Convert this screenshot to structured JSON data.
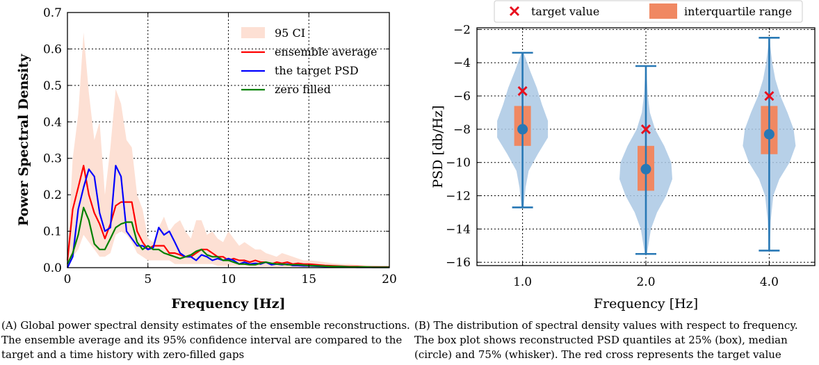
{
  "captions": {
    "a_tag": "(A)",
    "a_text": "Global power spectral density estimates of the ensemble reconstructions. The ensemble average and its 95% confidence interval are compared to the target and a time history with zero-filled gaps",
    "b_tag": "(B)",
    "b_text": "The distribution of spectral density values with respect to frequency. The box plot shows reconstructed PSD quantiles at 25% (box), median (circle) and 75% (whisker). The red cross represents the target value"
  },
  "chart_data": [
    {
      "type": "line",
      "title": "",
      "xlabel": "Frequency [Hz]",
      "ylabel": "Power Spectral Density",
      "xlim": [
        0,
        20
      ],
      "ylim": [
        0,
        0.7
      ],
      "xticks": [
        0,
        5,
        10,
        15,
        20
      ],
      "yticks": [
        0.0,
        0.1,
        0.2,
        0.3,
        0.4,
        0.5,
        0.6,
        0.7
      ],
      "grid": true,
      "legend": "top-right",
      "x": [
        0,
        0.33,
        0.67,
        1.0,
        1.33,
        1.67,
        2.0,
        2.33,
        2.67,
        3.0,
        3.33,
        3.67,
        4.0,
        4.33,
        4.67,
        5.0,
        5.33,
        5.67,
        6.0,
        6.33,
        6.67,
        7.0,
        7.33,
        7.67,
        8.0,
        8.33,
        8.67,
        9.0,
        9.33,
        9.67,
        10.0,
        10.33,
        10.67,
        11.0,
        11.33,
        11.67,
        12.0,
        12.33,
        12.67,
        13.0,
        13.33,
        13.67,
        14.0,
        14.33,
        14.67,
        15.0,
        15.5,
        16.0,
        16.5,
        17.0,
        17.5,
        18.0,
        18.5,
        19.0,
        19.5,
        20.0
      ],
      "band": {
        "name": "95 CI",
        "color": "#fde0d4",
        "lower": [
          0,
          0.03,
          0.05,
          0.09,
          0.07,
          0.05,
          0.03,
          0.03,
          0.04,
          0.09,
          0.1,
          0.09,
          0.07,
          0.04,
          0.03,
          0.02,
          0.02,
          0.02,
          0.02,
          0.02,
          0.01,
          0.01,
          0.01,
          0.01,
          0.01,
          0.01,
          0.01,
          0.01,
          0.005,
          0.005,
          0.005,
          0.005,
          0.005,
          0.005,
          0.003,
          0.003,
          0.003,
          0.003,
          0.002,
          0.002,
          0.002,
          0.002,
          0.002,
          0.001,
          0.001,
          0.001,
          0.001,
          0.001,
          0.001,
          0.001,
          0.001,
          0.001,
          0.001,
          0.001,
          0.001,
          0.001
        ],
        "upper": [
          0.03,
          0.3,
          0.42,
          0.645,
          0.48,
          0.35,
          0.4,
          0.2,
          0.33,
          0.49,
          0.45,
          0.35,
          0.33,
          0.2,
          0.16,
          0.08,
          0.07,
          0.11,
          0.14,
          0.1,
          0.12,
          0.13,
          0.1,
          0.08,
          0.13,
          0.13,
          0.09,
          0.1,
          0.08,
          0.07,
          0.1,
          0.08,
          0.06,
          0.07,
          0.06,
          0.05,
          0.05,
          0.04,
          0.035,
          0.03,
          0.04,
          0.035,
          0.03,
          0.025,
          0.02,
          0.02,
          0.018,
          0.015,
          0.012,
          0.01,
          0.01,
          0.008,
          0.007,
          0.006,
          0.005,
          0.005
        ]
      },
      "series": [
        {
          "name": "ensemble average",
          "color": "#ff0000",
          "values": [
            0.02,
            0.16,
            0.22,
            0.28,
            0.2,
            0.15,
            0.12,
            0.08,
            0.12,
            0.17,
            0.18,
            0.18,
            0.18,
            0.1,
            0.07,
            0.05,
            0.06,
            0.06,
            0.06,
            0.04,
            0.04,
            0.035,
            0.03,
            0.03,
            0.04,
            0.05,
            0.05,
            0.04,
            0.03,
            0.03,
            0.02,
            0.025,
            0.02,
            0.02,
            0.015,
            0.02,
            0.015,
            0.015,
            0.01,
            0.015,
            0.012,
            0.015,
            0.01,
            0.012,
            0.01,
            0.01,
            0.008,
            0.006,
            0.005,
            0.004,
            0.003,
            0.003,
            0.002,
            0.002,
            0.002,
            0.002
          ]
        },
        {
          "name": "the target PSD",
          "color": "#0000ff",
          "values": [
            0.0,
            0.03,
            0.16,
            0.22,
            0.27,
            0.25,
            0.15,
            0.1,
            0.11,
            0.28,
            0.25,
            0.1,
            0.08,
            0.06,
            0.06,
            0.05,
            0.055,
            0.11,
            0.09,
            0.1,
            0.07,
            0.04,
            0.03,
            0.03,
            0.02,
            0.035,
            0.03,
            0.02,
            0.025,
            0.02,
            0.025,
            0.02,
            0.01,
            0.015,
            0.01,
            0.012,
            0.01,
            0.015,
            0.008,
            0.01,
            0.008,
            0.01,
            0.006,
            0.006,
            0.005,
            0.005,
            0.004,
            0.003,
            0.002,
            0.002,
            0.002,
            0.001,
            0.001,
            0.001,
            0.001,
            0.001
          ]
        },
        {
          "name": "zero filled",
          "color": "#008000",
          "values": [
            0.01,
            0.04,
            0.09,
            0.165,
            0.13,
            0.065,
            0.05,
            0.05,
            0.08,
            0.11,
            0.12,
            0.125,
            0.125,
            0.07,
            0.05,
            0.06,
            0.05,
            0.05,
            0.04,
            0.035,
            0.03,
            0.025,
            0.03,
            0.035,
            0.045,
            0.05,
            0.035,
            0.03,
            0.03,
            0.02,
            0.02,
            0.015,
            0.01,
            0.01,
            0.008,
            0.008,
            0.012,
            0.015,
            0.012,
            0.01,
            0.01,
            0.008,
            0.008,
            0.008,
            0.007,
            0.006,
            0.005,
            0.004,
            0.003,
            0.003,
            0.002,
            0.002,
            0.002,
            0.001,
            0.001,
            0.001
          ]
        }
      ]
    },
    {
      "type": "violin",
      "title": "",
      "xlabel": "Frequency [Hz]",
      "ylabel": "PSD [db/Hz]",
      "categories": [
        "1.0",
        "2.0",
        "4.0"
      ],
      "ylim": [
        -16.2,
        -1.9
      ],
      "yticks": [
        -2,
        -4,
        -6,
        -8,
        -10,
        -12,
        -14,
        -16
      ],
      "grid": true,
      "legend": "top-center-outside",
      "legend_entries": [
        "target value",
        "interquartile range"
      ],
      "colors": {
        "violin": "#aac8e4",
        "whisker": "#2878b5",
        "iqr": "#f08862",
        "target": "#e8101e"
      },
      "groups": [
        {
          "category": "1.0",
          "target": -5.7,
          "median": -8.0,
          "q1": -9.0,
          "q3": -6.6,
          "min": -12.7,
          "max": -3.4,
          "density_y": [
            -12.7,
            -11.5,
            -10.5,
            -9.5,
            -8.5,
            -7.5,
            -6.5,
            -5.5,
            -4.5,
            -3.4
          ],
          "density_w": [
            0.02,
            0.06,
            0.12,
            0.3,
            0.5,
            0.5,
            0.38,
            0.28,
            0.15,
            0.02
          ]
        },
        {
          "category": "2.0",
          "target": -8.0,
          "median": -10.4,
          "q1": -11.7,
          "q3": -9.0,
          "min": -15.5,
          "max": -4.2,
          "density_y": [
            -15.5,
            -14.0,
            -13.0,
            -12.0,
            -11.0,
            -10.0,
            -9.0,
            -8.0,
            -7.0,
            -6.0,
            -5.0,
            -4.2
          ],
          "density_w": [
            0.02,
            0.1,
            0.22,
            0.4,
            0.52,
            0.5,
            0.36,
            0.18,
            0.08,
            0.04,
            0.02,
            0.01
          ]
        },
        {
          "category": "4.0",
          "target": -6.0,
          "median": -8.3,
          "q1": -9.5,
          "q3": -6.6,
          "min": -15.3,
          "max": -2.5,
          "density_y": [
            -15.3,
            -13.5,
            -12.0,
            -11.0,
            -10.0,
            -9.0,
            -8.0,
            -7.0,
            -6.0,
            -5.0,
            -4.0,
            -3.0,
            -2.5
          ],
          "density_w": [
            0.01,
            0.03,
            0.08,
            0.2,
            0.4,
            0.52,
            0.48,
            0.36,
            0.22,
            0.12,
            0.06,
            0.02,
            0.01
          ]
        }
      ]
    }
  ]
}
